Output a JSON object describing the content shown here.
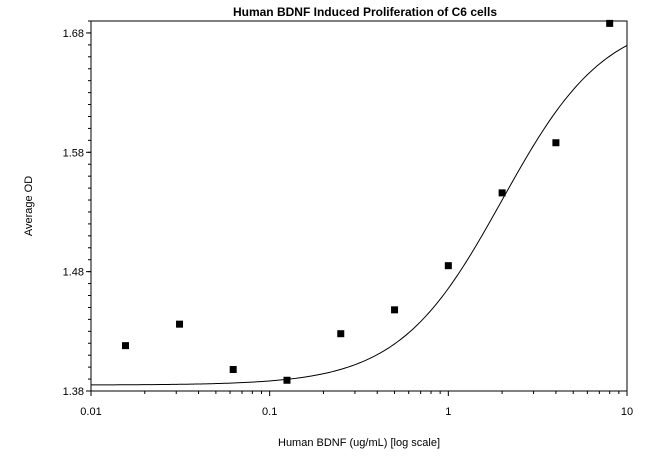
{
  "chart_data": {
    "type": "scatter",
    "title": "Human BDNF Induced Proliferation of C6 cells",
    "xlabel": "Human BDNF (ug/mL) [log scale]",
    "ylabel": "Average OD",
    "x_scale": "log",
    "xlim": [
      0.01,
      10
    ],
    "ylim": [
      1.38,
      1.69
    ],
    "x_ticks": [
      {
        "value": 0.01,
        "label": "0.01"
      },
      {
        "value": 0.1,
        "label": "0.1"
      },
      {
        "value": 1,
        "label": "1"
      },
      {
        "value": 10,
        "label": "10"
      }
    ],
    "y_ticks": [
      {
        "value": 1.38,
        "label": "1.38"
      },
      {
        "value": 1.48,
        "label": "1.48"
      },
      {
        "value": 1.58,
        "label": "1.58"
      },
      {
        "value": 1.68,
        "label": "1.68"
      }
    ],
    "grid": false,
    "legend": "none",
    "points": [
      {
        "x": 0.0156,
        "y": 1.418
      },
      {
        "x": 0.0313,
        "y": 1.436
      },
      {
        "x": 0.0625,
        "y": 1.398
      },
      {
        "x": 0.125,
        "y": 1.389
      },
      {
        "x": 0.25,
        "y": 1.428
      },
      {
        "x": 0.5,
        "y": 1.448
      },
      {
        "x": 1,
        "y": 1.485
      },
      {
        "x": 2,
        "y": 1.546
      },
      {
        "x": 4,
        "y": 1.588
      },
      {
        "x": 8,
        "y": 1.688
      }
    ],
    "curve": {
      "model": "4-parameter logistic",
      "bottom": 1.385,
      "top": 1.695,
      "ec50": 2.0,
      "hill": 1.5
    },
    "colors": {
      "marker": "#000000",
      "curve": "#000000",
      "axis": "#000000"
    }
  }
}
